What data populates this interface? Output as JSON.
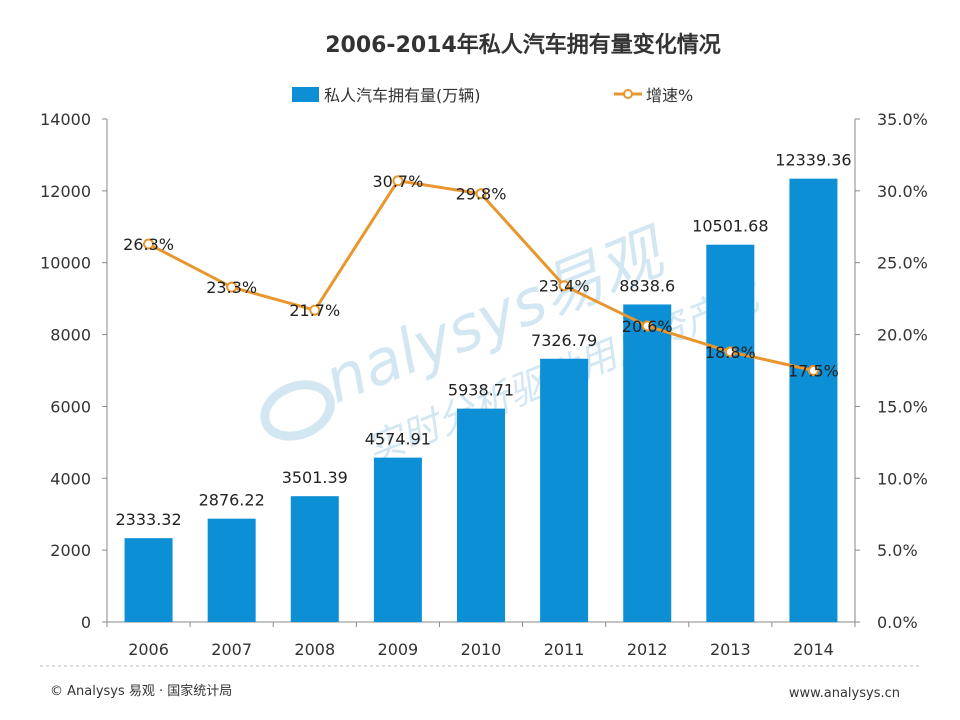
{
  "chart_data": {
    "type": "bar",
    "title": "2006-2014年私人汽车拥有量变化情况",
    "categories": [
      "2006",
      "2007",
      "2008",
      "2009",
      "2010",
      "2011",
      "2012",
      "2013",
      "2014"
    ],
    "series": [
      {
        "name": "私人汽车拥有量(万辆)",
        "type": "bar",
        "axis": "left",
        "values": [
          2333.32,
          2876.22,
          3501.39,
          4574.91,
          5938.71,
          7326.79,
          8838.6,
          10501.68,
          12339.36
        ],
        "labels": [
          "2333.32",
          "2876.22",
          "3501.39",
          "4574.91",
          "5938.71",
          "7326.79",
          "8838.6",
          "10501.68",
          "12339.36"
        ]
      },
      {
        "name": "增速%",
        "type": "line",
        "axis": "right",
        "values": [
          26.3,
          23.3,
          21.7,
          30.7,
          29.8,
          23.4,
          20.6,
          18.8,
          17.5
        ],
        "labels": [
          "26.3%",
          "23.3%",
          "21.7%",
          "30.7%",
          "29.8%",
          "23.4%",
          "20.6%",
          "18.8%",
          "17.5%"
        ]
      }
    ],
    "ylim": [
      0,
      14000
    ],
    "y_ticks": [
      "0",
      "2000",
      "4000",
      "6000",
      "8000",
      "10000",
      "12000",
      "14000"
    ],
    "y2lim": [
      0,
      35
    ],
    "y2_ticks": [
      "0.0%",
      "5.0%",
      "10.0%",
      "15.0%",
      "20.0%",
      "25.0%",
      "30.0%",
      "35.0%"
    ],
    "grid": false,
    "legend": "top-center",
    "colors": {
      "bar": "#0d8fd6",
      "line": "#e8962e"
    }
  },
  "footer": {
    "source": "© Analysys 易观 · 国家统计局",
    "url": "www.analysys.cn"
  },
  "watermark": {
    "brand": "nalysys易观",
    "slogan": "实时分析驱动用户资产成"
  }
}
